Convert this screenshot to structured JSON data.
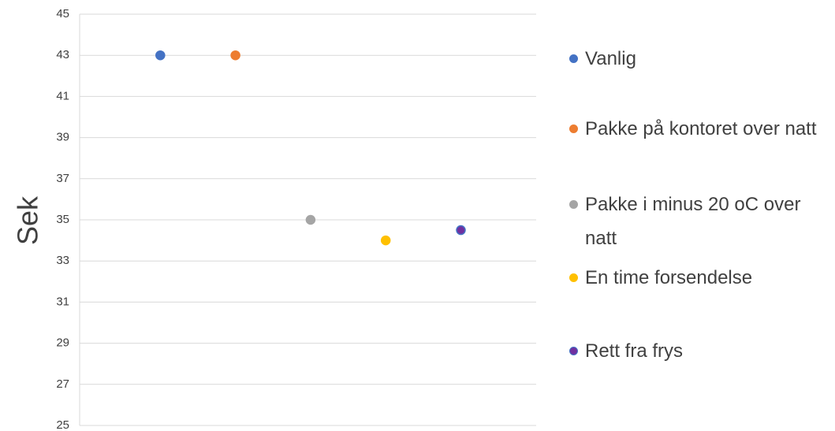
{
  "chart_data": {
    "type": "scatter",
    "ylabel": "Sek",
    "ylim": [
      25,
      45
    ],
    "yticks": [
      25,
      27,
      29,
      31,
      33,
      35,
      37,
      39,
      41,
      43,
      45
    ],
    "grid": true,
    "series": [
      {
        "name": "Vanlig",
        "color": "#4472c4",
        "values": [
          43
        ]
      },
      {
        "name": "Pakke på kontoret over natt",
        "color": "#ed7d31",
        "values": [
          43
        ]
      },
      {
        "name": "Pakke i minus 20 oC over natt",
        "color": "#a5a5a5",
        "values": [
          35
        ]
      },
      {
        "name": "En time forsendelse",
        "color": "#ffc000",
        "values": [
          34
        ]
      },
      {
        "name": "Rett fra frys",
        "color": "#7030a0",
        "edge_color": "#4472c4",
        "values": [
          34.5
        ]
      }
    ]
  }
}
